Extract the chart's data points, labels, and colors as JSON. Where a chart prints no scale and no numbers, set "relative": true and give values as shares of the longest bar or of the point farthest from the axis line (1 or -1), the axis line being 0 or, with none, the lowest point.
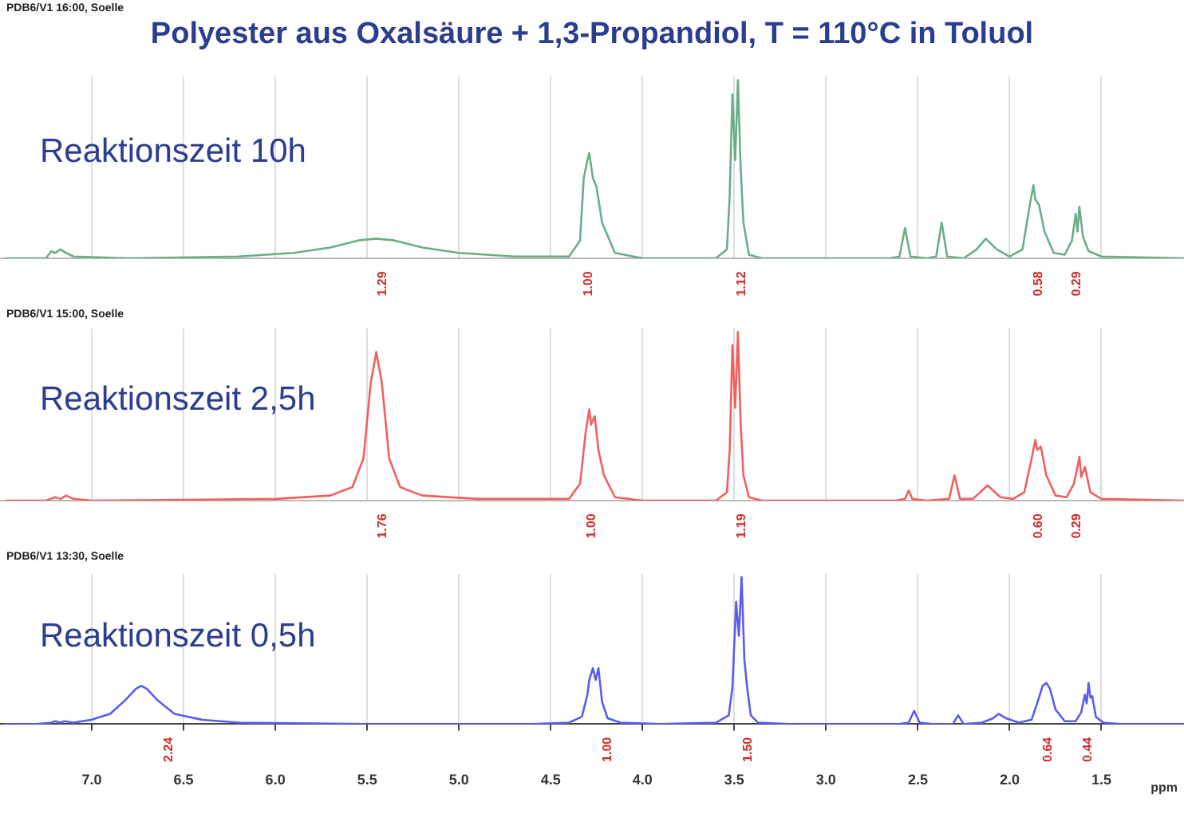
{
  "chart_data": [
    {
      "type": "line",
      "title": "Polyester aus Oxalsäure + 1,3-Propandiol, T = 110°C in Toluol",
      "relative": true,
      "grid": "x",
      "legend": false,
      "marker": "none",
      "line_style": "solid",
      "tick_labels": false,
      "xlim": [
        7.5,
        1.05
      ],
      "xticks": [
        7,
        6.5,
        6,
        5.5,
        5,
        4.5,
        4,
        3.5,
        3,
        2.5,
        2,
        1.5
      ],
      "x": [
        7.47,
        7.25,
        7.22,
        7.2,
        7.17,
        7.14,
        7.1,
        6.8,
        6.2,
        5.9,
        5.7,
        5.55,
        5.45,
        5.35,
        5.2,
        5.0,
        4.7,
        4.4,
        4.34,
        4.32,
        4.3,
        4.29,
        4.27,
        4.25,
        4.22,
        4.15,
        4.0,
        3.6,
        3.54,
        3.525,
        3.51,
        3.495,
        3.48,
        3.465,
        3.45,
        3.42,
        3.35,
        2.65,
        2.6,
        2.57,
        2.54,
        2.45,
        2.4,
        2.37,
        2.34,
        2.25,
        2.18,
        2.13,
        2.07,
        2.0,
        1.93,
        1.89,
        1.87,
        1.86,
        1.84,
        1.81,
        1.76,
        1.7,
        1.66,
        1.64,
        1.63,
        1.62,
        1.6,
        1.57,
        1.5,
        1.05
      ],
      "series": [
        {
          "name": "Reaktionszeit 10h",
          "color": "#6aae88",
          "values": [
            0,
            0,
            0.04,
            0.03,
            0.05,
            0.03,
            0.01,
            0,
            0.01,
            0.03,
            0.06,
            0.1,
            0.11,
            0.1,
            0.06,
            0.03,
            0.01,
            0.01,
            0.1,
            0.45,
            0.55,
            0.59,
            0.45,
            0.4,
            0.2,
            0.03,
            0,
            0,
            0.05,
            0.35,
            0.92,
            0.55,
            1,
            0.5,
            0.2,
            0.02,
            0,
            0,
            0.01,
            0.17,
            0.01,
            0,
            0.01,
            0.2,
            0.01,
            0,
            0.05,
            0.11,
            0.05,
            0.01,
            0.05,
            0.3,
            0.41,
            0.33,
            0.3,
            0.15,
            0.03,
            0.02,
            0.1,
            0.25,
            0.15,
            0.29,
            0.12,
            0.04,
            0.01,
            0
          ]
        }
      ],
      "annotations": [
        "PDB6/V1 16:00, Soelle",
        "1.29",
        "1.00",
        "1.12",
        "0.58",
        "0.29"
      ]
    },
    {
      "type": "line",
      "relative": true,
      "grid": "x",
      "legend": false,
      "marker": "none",
      "line_style": "solid",
      "tick_labels": false,
      "xlim": [
        7.5,
        1.05
      ],
      "xticks": [
        7,
        6.5,
        6,
        5.5,
        5,
        4.5,
        4,
        3.5,
        3,
        2.5,
        2,
        1.5
      ],
      "x": [
        7.47,
        7.25,
        7.2,
        7.17,
        7.14,
        7.1,
        7.0,
        6.0,
        5.7,
        5.58,
        5.52,
        5.48,
        5.45,
        5.42,
        5.38,
        5.32,
        5.2,
        4.9,
        4.4,
        4.34,
        4.31,
        4.29,
        4.28,
        4.26,
        4.24,
        4.21,
        4.15,
        4.0,
        3.6,
        3.54,
        3.525,
        3.51,
        3.495,
        3.48,
        3.465,
        3.45,
        3.42,
        3.35,
        2.62,
        2.57,
        2.55,
        2.53,
        2.45,
        2.33,
        2.3,
        2.27,
        2.2,
        2.12,
        2.05,
        1.98,
        1.92,
        1.88,
        1.86,
        1.85,
        1.83,
        1.8,
        1.75,
        1.69,
        1.65,
        1.63,
        1.62,
        1.61,
        1.59,
        1.56,
        1.5,
        1.05
      ],
      "series": [
        {
          "name": "Reaktionszeit 2,5h",
          "color": "#f0605f",
          "values": [
            0,
            0,
            0.02,
            0.01,
            0.03,
            0.01,
            0,
            0.01,
            0.03,
            0.08,
            0.25,
            0.7,
            0.88,
            0.7,
            0.25,
            0.08,
            0.03,
            0.01,
            0.01,
            0.1,
            0.4,
            0.54,
            0.45,
            0.5,
            0.3,
            0.15,
            0.02,
            0,
            0,
            0.05,
            0.3,
            0.92,
            0.55,
            1,
            0.45,
            0.15,
            0.02,
            0,
            0,
            0.01,
            0.06,
            0.01,
            0,
            0.01,
            0.15,
            0.01,
            0.01,
            0.09,
            0.02,
            0.01,
            0.05,
            0.25,
            0.36,
            0.3,
            0.32,
            0.15,
            0.03,
            0.02,
            0.1,
            0.2,
            0.26,
            0.14,
            0.2,
            0.05,
            0.01,
            0
          ]
        }
      ],
      "annotations": [
        "PDB6/V1 15:00, Soelle",
        "1.76",
        "1.00",
        "1.19",
        "0.60",
        "0.29"
      ]
    },
    {
      "type": "line",
      "xlabel": "ppm",
      "relative": true,
      "grid": "x",
      "legend": false,
      "marker": "none",
      "line_style": "solid",
      "tick_labels": "x",
      "xlim": [
        7.5,
        1.05
      ],
      "xticks": [
        {
          "value": 7,
          "label": "7.0"
        },
        6.5,
        {
          "value": 6,
          "label": "6.0"
        },
        5.5,
        {
          "value": 5,
          "label": "5.0"
        },
        4.5,
        {
          "value": 4,
          "label": "4.0"
        },
        3.5,
        {
          "value": 3,
          "label": "3.0"
        },
        2.5,
        {
          "value": 2,
          "label": "2.0"
        },
        1.5
      ],
      "x": [
        7.47,
        7.3,
        7.22,
        7.2,
        7.17,
        7.15,
        7.1,
        7.0,
        6.9,
        6.82,
        6.76,
        6.73,
        6.7,
        6.64,
        6.55,
        6.4,
        6.2,
        5.5,
        4.6,
        4.4,
        4.33,
        4.3,
        4.29,
        4.27,
        4.255,
        4.24,
        4.22,
        4.19,
        4.12,
        3.9,
        3.6,
        3.53,
        3.51,
        3.49,
        3.475,
        3.46,
        3.445,
        3.43,
        3.41,
        3.37,
        3.2,
        2.6,
        2.55,
        2.52,
        2.49,
        2.42,
        2.31,
        2.28,
        2.25,
        2.15,
        2.09,
        2.06,
        2.02,
        1.95,
        1.88,
        1.84,
        1.82,
        1.8,
        1.78,
        1.75,
        1.7,
        1.64,
        1.61,
        1.59,
        1.58,
        1.57,
        1.56,
        1.55,
        1.53,
        1.49,
        1.4,
        1.05
      ],
      "series": [
        {
          "name": "Reaktionszeit 0,5h",
          "color": "#5b5bf0",
          "values": [
            0,
            0,
            0.01,
            0.02,
            0.01,
            0.02,
            0.01,
            0.03,
            0.07,
            0.16,
            0.24,
            0.26,
            0.24,
            0.16,
            0.07,
            0.03,
            0.01,
            0,
            0,
            0.01,
            0.05,
            0.2,
            0.3,
            0.38,
            0.3,
            0.38,
            0.15,
            0.04,
            0.01,
            0,
            0.01,
            0.06,
            0.25,
            0.83,
            0.6,
            1,
            0.44,
            0.25,
            0.06,
            0.01,
            0,
            0,
            0.01,
            0.09,
            0.01,
            0,
            0,
            0.06,
            0,
            0.01,
            0.04,
            0.07,
            0.04,
            0.01,
            0.03,
            0.18,
            0.26,
            0.28,
            0.24,
            0.1,
            0.02,
            0.02,
            0.08,
            0.2,
            0.14,
            0.28,
            0.18,
            0.19,
            0.05,
            0.01,
            0,
            0
          ]
        }
      ],
      "annotations": [
        "PDB6/V1 13:30, Soelle",
        "2.24",
        "1.00",
        "1.50",
        "0.64",
        "0.44"
      ]
    }
  ]
}
